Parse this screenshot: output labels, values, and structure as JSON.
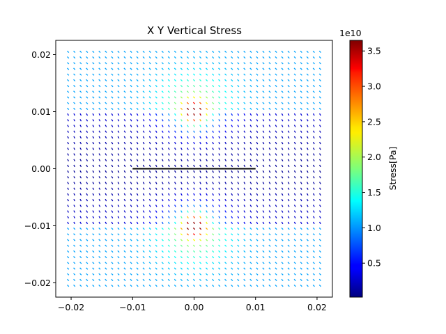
{
  "chart_data": {
    "type": "quiver",
    "title": "X Y Vertical Stress",
    "xlabel": "",
    "ylabel": "",
    "xlim": [
      -0.0225,
      0.0225
    ],
    "ylim": [
      -0.0225,
      0.0225
    ],
    "x_ticks": [
      "−0.02",
      "−0.01",
      "0.00",
      "0.01",
      "0.02"
    ],
    "x_tick_values": [
      -0.02,
      -0.01,
      0.0,
      0.01,
      0.02
    ],
    "y_ticks": [
      "−0.02",
      "−0.01",
      "0.00",
      "0.01",
      "0.02"
    ],
    "y_tick_values": [
      -0.02,
      -0.01,
      0.0,
      0.01,
      0.02
    ],
    "grid": false,
    "colormap": "jet",
    "colorbar": {
      "label": "Stress[Pa]",
      "scale_label": "1e10",
      "range": [
        0.02,
        3.65
      ],
      "ticks": [
        "0.5",
        "1.0",
        "1.5",
        "2.0",
        "2.5",
        "3.0",
        "3.5"
      ],
      "tick_values": [
        0.5,
        1.0,
        1.5,
        2.0,
        2.5,
        3.0,
        3.5
      ]
    },
    "field_grid": {
      "x_range": [
        -0.0205,
        0.0205
      ],
      "y_range": [
        -0.0205,
        0.0205
      ],
      "nx": 41,
      "ny": 42
    },
    "crack_segment": {
      "x": [
        -0.01,
        0.01
      ],
      "y": [
        0.0,
        0.0
      ],
      "color": "#000000"
    }
  }
}
